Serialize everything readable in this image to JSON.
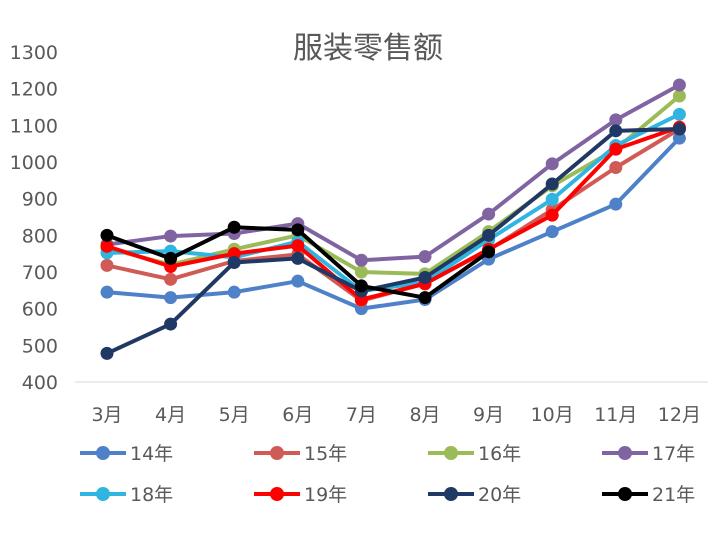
{
  "chart_data": {
    "type": "line",
    "title": "服装零售额",
    "xlabel": "",
    "ylabel": "",
    "categories": [
      "3月",
      "4月",
      "5月",
      "6月",
      "7月",
      "8月",
      "9月",
      "10月",
      "11月",
      "12月"
    ],
    "yticks": [
      "1300",
      "1200",
      "1100",
      "1000",
      "900",
      "800",
      "700",
      "600",
      "500",
      "400"
    ],
    "ylim": [
      400,
      1300
    ],
    "grid": false,
    "legend_position": "bottom",
    "series": [
      {
        "name": "14年",
        "color": "#4e81c7",
        "values": [
          645,
          630,
          645,
          675,
          600,
          625,
          735,
          810,
          885,
          1065
        ]
      },
      {
        "name": "15年",
        "color": "#d05a55",
        "values": [
          718,
          680,
          730,
          748,
          622,
          668,
          760,
          870,
          985,
          1090
        ]
      },
      {
        "name": "16年",
        "color": "#9bbb59",
        "values": [
          765,
          720,
          762,
          800,
          700,
          695,
          810,
          935,
          1035,
          1180
        ]
      },
      {
        "name": "17年",
        "color": "#8064a2",
        "values": [
          775,
          798,
          805,
          832,
          732,
          742,
          858,
          995,
          1115,
          1210
        ]
      },
      {
        "name": "18年",
        "color": "#2fb5e0",
        "values": [
          752,
          757,
          740,
          783,
          648,
          672,
          788,
          898,
          1045,
          1130
        ]
      },
      {
        "name": "19年",
        "color": "#ff0000",
        "values": [
          770,
          715,
          750,
          772,
          625,
          668,
          762,
          855,
          1035,
          1095
        ]
      },
      {
        "name": "20年",
        "color": "#203864",
        "values": [
          478,
          558,
          726,
          737,
          648,
          685,
          800,
          940,
          1085,
          1090
        ]
      },
      {
        "name": "21年",
        "color": "#000000",
        "values": [
          800,
          737,
          822,
          815,
          662,
          630,
          755,
          null,
          null,
          null
        ]
      }
    ]
  }
}
